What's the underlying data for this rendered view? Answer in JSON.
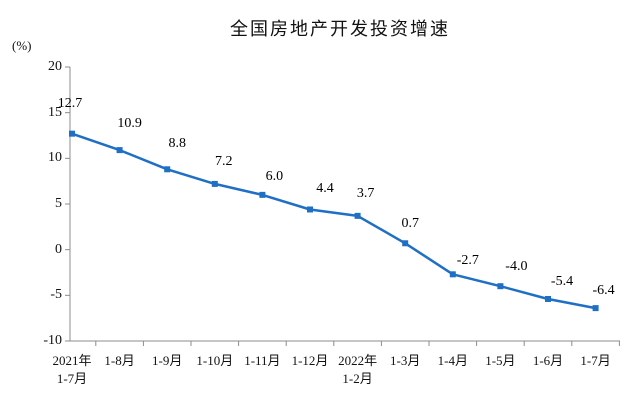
{
  "chart_data": {
    "type": "line",
    "title": "全国房地产开发投资增速",
    "ylabel": "(%)",
    "xlabel": "",
    "categories": [
      "2021年\n1-7月",
      "1-8月",
      "1-9月",
      "1-10月",
      "1-11月",
      "1-12月",
      "2022年\n1-2月",
      "1-3月",
      "1-4月",
      "1-5月",
      "1-6月",
      "1-7月"
    ],
    "series": [
      {
        "values": [
          12.7,
          10.9,
          8.8,
          7.2,
          6.0,
          4.4,
          3.7,
          0.7,
          -2.7,
          -4.0,
          -5.4,
          -6.4
        ],
        "color": "#1f6fc5"
      }
    ],
    "ylim": [
      -10,
      20
    ],
    "yticks": [
      20,
      15,
      10,
      5,
      0,
      -5,
      -10
    ],
    "grid": false,
    "data_labels": true,
    "axis_color": "#8c8c8c"
  }
}
